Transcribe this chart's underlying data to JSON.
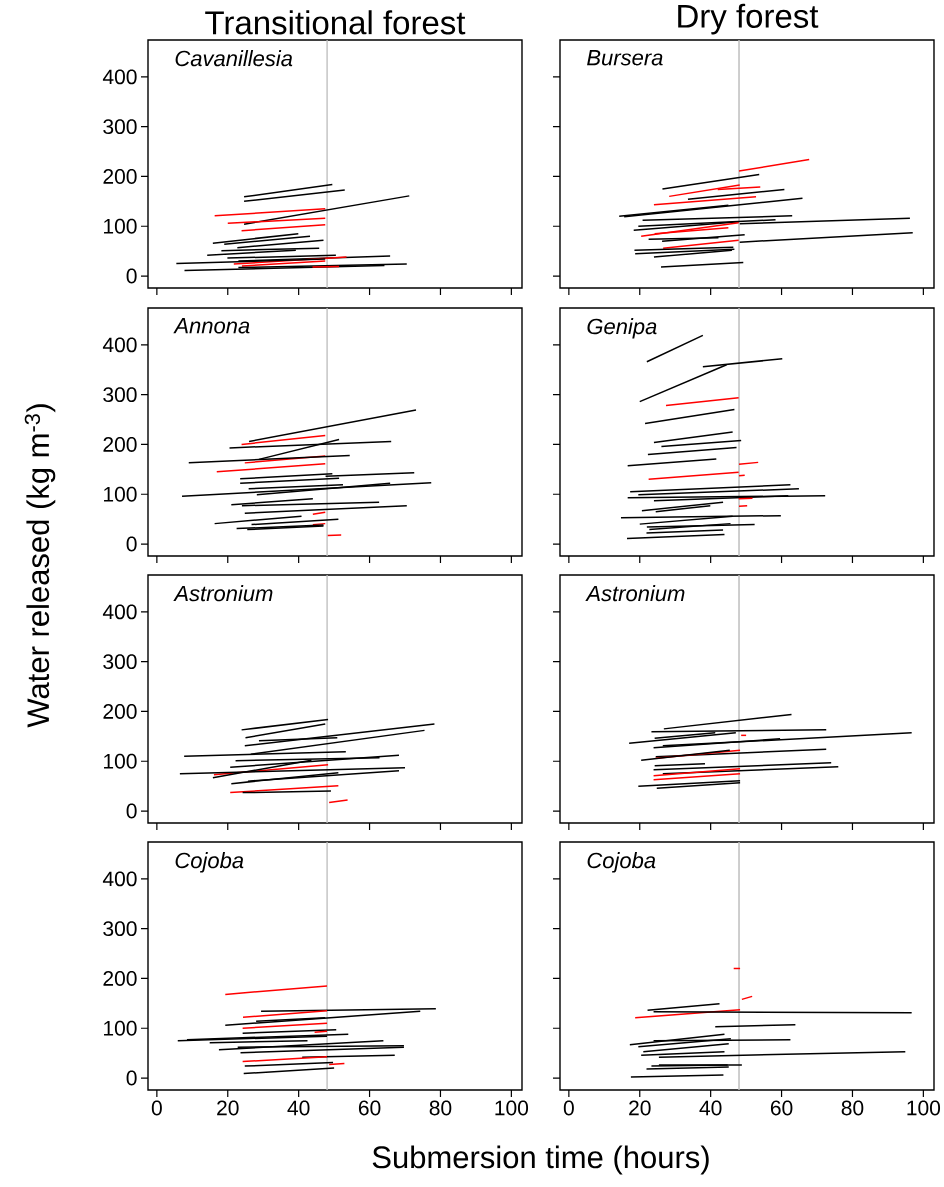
{
  "chart_data": [
    {
      "type": "line",
      "title": "Transitional forest",
      "annotations": [
        "Cavanillesia"
      ],
      "xlim": [
        -2.5,
        103
      ],
      "ylim": [
        -24,
        474
      ],
      "xticks": [
        0,
        20,
        40,
        60,
        80,
        100
      ],
      "yticks": [
        0,
        100,
        200,
        300,
        400
      ],
      "tick_labels": "y",
      "ref_lines": [
        {
          "axis": "x",
          "value": 48,
          "color": "#bebebe"
        }
      ],
      "series": [
        {
          "color": "#000000",
          "x": [
            24.6,
            49.5
          ],
          "values": [
            159,
            184
          ]
        },
        {
          "color": "#000000",
          "x": [
            24.6,
            53
          ],
          "values": [
            150,
            173
          ]
        },
        {
          "color": "#ff0000",
          "x": [
            16.3,
            47.5
          ],
          "values": [
            121,
            135
          ]
        },
        {
          "color": "#000000",
          "x": [
            24.6,
            71.2
          ],
          "values": [
            104,
            161
          ]
        },
        {
          "color": "#ff0000",
          "x": [
            20,
            47.5
          ],
          "values": [
            106,
            116
          ]
        },
        {
          "color": "#ff0000",
          "x": [
            23.9,
            47.5
          ],
          "values": [
            91,
            103
          ]
        },
        {
          "color": "#000000",
          "x": [
            15.8,
            39.9
          ],
          "values": [
            66,
            85
          ]
        },
        {
          "color": "#000000",
          "x": [
            19,
            43.2
          ],
          "values": [
            64,
            80
          ]
        },
        {
          "color": "#000000",
          "x": [
            22.7,
            47
          ],
          "values": [
            57,
            72
          ]
        },
        {
          "color": "#000000",
          "x": [
            18.2,
            45.8
          ],
          "values": [
            51,
            56
          ]
        },
        {
          "color": "#000000",
          "x": [
            14.2,
            39.2
          ],
          "values": [
            42,
            52
          ]
        },
        {
          "color": "#000000",
          "x": [
            19.9,
            50.5
          ],
          "values": [
            36,
            42
          ]
        },
        {
          "color": "#000000",
          "x": [
            23,
            65.8
          ],
          "values": [
            30,
            40
          ]
        },
        {
          "color": "#ff0000",
          "x": [
            21.7,
            53.5
          ],
          "values": [
            24,
            38
          ]
        },
        {
          "color": "#000000",
          "x": [
            5.5,
            47.5
          ],
          "values": [
            25,
            34
          ]
        },
        {
          "color": "#ff0000",
          "x": [
            24,
            47.5
          ],
          "values": [
            20,
            30
          ]
        },
        {
          "color": "#000000",
          "x": [
            7.8,
            64.2
          ],
          "values": [
            11,
            21
          ]
        },
        {
          "color": "#000000",
          "x": [
            23,
            70.5
          ],
          "values": [
            17,
            24
          ]
        },
        {
          "color": "#ff0000",
          "x": [
            43.9,
            51.4
          ],
          "values": [
            18,
            19
          ]
        }
      ]
    },
    {
      "type": "line",
      "title": "Dry forest",
      "annotations": [
        "Bursera"
      ],
      "xlim": [
        -2.5,
        103
      ],
      "ylim": [
        -24,
        474
      ],
      "xticks": [
        0,
        20,
        40,
        60,
        80,
        100
      ],
      "yticks": [
        0,
        100,
        200,
        300,
        400
      ],
      "tick_labels": false,
      "ref_lines": [
        {
          "axis": "x",
          "value": 48,
          "color": "#bebebe"
        }
      ],
      "series": [
        {
          "color": "#ff0000",
          "x": [
            48,
            67.8
          ],
          "values": [
            211,
            234
          ]
        },
        {
          "color": "#000000",
          "x": [
            26.4,
            53.7
          ],
          "values": [
            175,
            204
          ]
        },
        {
          "color": "#ff0000",
          "x": [
            28.3,
            48.2
          ],
          "values": [
            160,
            183
          ]
        },
        {
          "color": "#ff0000",
          "x": [
            42,
            54
          ],
          "values": [
            174,
            179
          ]
        },
        {
          "color": "#000000",
          "x": [
            33.6,
            60.8
          ],
          "values": [
            154,
            174
          ]
        },
        {
          "color": "#ff0000",
          "x": [
            24,
            52.8
          ],
          "values": [
            143,
            159
          ]
        },
        {
          "color": "#000000",
          "x": [
            15.6,
            65.9
          ],
          "values": [
            119,
            156
          ]
        },
        {
          "color": "#000000",
          "x": [
            14.2,
            45
          ],
          "values": [
            120,
            142
          ]
        },
        {
          "color": "#000000",
          "x": [
            20.8,
            63
          ],
          "values": [
            112,
            121
          ]
        },
        {
          "color": "#000000",
          "x": [
            19.6,
            58.3
          ],
          "values": [
            100,
            113
          ]
        },
        {
          "color": "#000000",
          "x": [
            18.3,
            47.9
          ],
          "values": [
            92,
            109
          ]
        },
        {
          "color": "#ff0000",
          "x": [
            20.4,
            47.9
          ],
          "values": [
            80,
            107
          ]
        },
        {
          "color": "#000000",
          "x": [
            48.2,
            96.2
          ],
          "values": [
            105,
            116
          ]
        },
        {
          "color": "#ff0000",
          "x": [
            24.2,
            45
          ],
          "values": [
            85,
            97
          ]
        },
        {
          "color": "#000000",
          "x": [
            22.5,
            42.2
          ],
          "values": [
            74,
            77
          ]
        },
        {
          "color": "#000000",
          "x": [
            26.3,
            49.6
          ],
          "values": [
            70,
            83
          ]
        },
        {
          "color": "#000000",
          "x": [
            48.2,
            97
          ],
          "values": [
            68,
            87
          ]
        },
        {
          "color": "#ff0000",
          "x": [
            26.6,
            47.9
          ],
          "values": [
            56,
            72
          ]
        },
        {
          "color": "#000000",
          "x": [
            18.5,
            46.4
          ],
          "values": [
            52,
            58
          ]
        },
        {
          "color": "#000000",
          "x": [
            18.7,
            46.7
          ],
          "values": [
            45,
            54
          ]
        },
        {
          "color": "#000000",
          "x": [
            24,
            46
          ],
          "values": [
            38,
            52
          ]
        },
        {
          "color": "#000000",
          "x": [
            26,
            49.2
          ],
          "values": [
            18,
            27
          ]
        }
      ]
    },
    {
      "type": "line",
      "ylabel": "Water released (kg m$^{-3}$)",
      "annotations": [
        "Annona"
      ],
      "xlim": [
        -2.5,
        103
      ],
      "ylim": [
        -24,
        474
      ],
      "xticks": [
        0,
        20,
        40,
        60,
        80,
        100
      ],
      "yticks": [
        0,
        100,
        200,
        300,
        400
      ],
      "tick_labels": "y",
      "ref_lines": [
        {
          "axis": "x",
          "value": 48,
          "color": "#bebebe"
        }
      ],
      "series": [
        {
          "color": "#000000",
          "x": [
            26,
            73.1
          ],
          "values": [
            206,
            269
          ]
        },
        {
          "color": "#ff0000",
          "x": [
            23.9,
            47.5
          ],
          "values": [
            200,
            218
          ]
        },
        {
          "color": "#000000",
          "x": [
            20.5,
            66.1
          ],
          "values": [
            193,
            206
          ]
        },
        {
          "color": "#000000",
          "x": [
            28.8,
            51.4
          ],
          "values": [
            170,
            210
          ]
        },
        {
          "color": "#ff0000",
          "x": [
            24.8,
            47.5
          ],
          "values": [
            163,
            177
          ]
        },
        {
          "color": "#000000",
          "x": [
            9,
            54.4
          ],
          "values": [
            163,
            178
          ]
        },
        {
          "color": "#ff0000",
          "x": [
            16.9,
            47.5
          ],
          "values": [
            145,
            161
          ]
        },
        {
          "color": "#000000",
          "x": [
            23.5,
            49.5
          ],
          "values": [
            131,
            141
          ]
        },
        {
          "color": "#000000",
          "x": [
            23.5,
            51.4
          ],
          "values": [
            122,
            132
          ]
        },
        {
          "color": "#000000",
          "x": [
            47.6,
            72.6
          ],
          "values": [
            136,
            143
          ]
        },
        {
          "color": "#000000",
          "x": [
            25.9,
            52.5
          ],
          "values": [
            111,
            119
          ]
        },
        {
          "color": "#000000",
          "x": [
            7.1,
            77.4
          ],
          "values": [
            96,
            123
          ]
        },
        {
          "color": "#000000",
          "x": [
            28.2,
            65.8
          ],
          "values": [
            99,
            122
          ]
        },
        {
          "color": "#000000",
          "x": [
            21,
            44
          ],
          "values": [
            79,
            91
          ]
        },
        {
          "color": "#000000",
          "x": [
            24,
            62.7
          ],
          "values": [
            77,
            84
          ]
        },
        {
          "color": "#000000",
          "x": [
            24.8,
            70.5
          ],
          "values": [
            62,
            77
          ]
        },
        {
          "color": "#ff0000",
          "x": [
            44,
            47.5
          ],
          "values": [
            60,
            64
          ]
        },
        {
          "color": "#000000",
          "x": [
            16.3,
            40.8
          ],
          "values": [
            41,
            56
          ]
        },
        {
          "color": "#000000",
          "x": [
            26.7,
            51.2
          ],
          "values": [
            39,
            50
          ]
        },
        {
          "color": "#ff0000",
          "x": [
            44,
            47.5
          ],
          "values": [
            39,
            41
          ]
        },
        {
          "color": "#000000",
          "x": [
            22.5,
            47
          ],
          "values": [
            31,
            38
          ]
        },
        {
          "color": "#000000",
          "x": [
            25.5,
            47
          ],
          "values": [
            29,
            36
          ]
        },
        {
          "color": "#ff0000",
          "x": [
            48.2,
            52
          ],
          "values": [
            17,
            18
          ]
        }
      ]
    },
    {
      "type": "line",
      "annotations": [
        "Genipa"
      ],
      "xlim": [
        -2.5,
        103
      ],
      "ylim": [
        -24,
        474
      ],
      "xticks": [
        0,
        20,
        40,
        60,
        80,
        100
      ],
      "yticks": [
        0,
        100,
        200,
        300,
        400
      ],
      "tick_labels": false,
      "ref_lines": [
        {
          "axis": "x",
          "value": 48,
          "color": "#bebebe"
        }
      ],
      "series": [
        {
          "color": "#000000",
          "x": [
            22,
            37.8
          ],
          "values": [
            366,
            419
          ]
        },
        {
          "color": "#000000",
          "x": [
            20,
            44.5
          ],
          "values": [
            286,
            360
          ]
        },
        {
          "color": "#000000",
          "x": [
            37.8,
            60.2
          ],
          "values": [
            356,
            372
          ]
        },
        {
          "color": "#ff0000",
          "x": [
            27.4,
            47.9
          ],
          "values": [
            278,
            294
          ]
        },
        {
          "color": "#000000",
          "x": [
            21.5,
            46.7
          ],
          "values": [
            242,
            270
          ]
        },
        {
          "color": "#000000",
          "x": [
            24,
            46.2
          ],
          "values": [
            204,
            225
          ]
        },
        {
          "color": "#000000",
          "x": [
            26.1,
            48.6
          ],
          "values": [
            196,
            208
          ]
        },
        {
          "color": "#000000",
          "x": [
            22.3,
            47.3
          ],
          "values": [
            180,
            194
          ]
        },
        {
          "color": "#000000",
          "x": [
            16.6,
            41.6
          ],
          "values": [
            157,
            171
          ]
        },
        {
          "color": "#ff0000",
          "x": [
            48,
            53.4
          ],
          "values": [
            160,
            164
          ]
        },
        {
          "color": "#ff0000",
          "x": [
            22.5,
            47.9
          ],
          "values": [
            130,
            144
          ]
        },
        {
          "color": "#ff0000",
          "x": [
            48,
            49.6
          ],
          "values": [
            137,
            138
          ]
        },
        {
          "color": "#000000",
          "x": [
            17.3,
            62.5
          ],
          "values": [
            105,
            119
          ]
        },
        {
          "color": "#000000",
          "x": [
            19.6,
            64.9
          ],
          "values": [
            99,
            111
          ]
        },
        {
          "color": "#000000",
          "x": [
            16.6,
            72.3
          ],
          "values": [
            93,
            97
          ]
        },
        {
          "color": "#000000",
          "x": [
            24,
            61.9
          ],
          "values": [
            87,
            97
          ]
        },
        {
          "color": "#ff0000",
          "x": [
            47.9,
            51.8
          ],
          "values": [
            91,
            92
          ]
        },
        {
          "color": "#000000",
          "x": [
            20.6,
            43.5
          ],
          "values": [
            67,
            84
          ]
        },
        {
          "color": "#000000",
          "x": [
            24.5,
            39.9
          ],
          "values": [
            65,
            77
          ]
        },
        {
          "color": "#ff0000",
          "x": [
            48,
            50.3
          ],
          "values": [
            76,
            77
          ]
        },
        {
          "color": "#000000",
          "x": [
            14.7,
            59.8
          ],
          "values": [
            53,
            57
          ]
        },
        {
          "color": "#000000",
          "x": [
            20,
            46.2
          ],
          "values": [
            40,
            56
          ]
        },
        {
          "color": "#000000",
          "x": [
            22,
            52.4
          ],
          "values": [
            34,
            39
          ]
        },
        {
          "color": "#000000",
          "x": [
            22.7,
            45.6
          ],
          "values": [
            29,
            41
          ]
        },
        {
          "color": "#000000",
          "x": [
            21.9,
            43.5
          ],
          "values": [
            22,
            28
          ]
        },
        {
          "color": "#000000",
          "x": [
            16.4,
            43.9
          ],
          "values": [
            11,
            19
          ]
        }
      ]
    },
    {
      "type": "line",
      "annotations": [
        "Astronium"
      ],
      "xlim": [
        -2.5,
        103
      ],
      "ylim": [
        -24,
        474
      ],
      "xticks": [
        0,
        20,
        40,
        60,
        80,
        100
      ],
      "yticks": [
        0,
        100,
        200,
        300,
        400
      ],
      "tick_labels": "y",
      "ref_lines": [
        {
          "axis": "x",
          "value": 48,
          "color": "#bebebe"
        }
      ],
      "series": [
        {
          "color": "#000000",
          "x": [
            23.9,
            48.3
          ],
          "values": [
            163,
            184
          ]
        },
        {
          "color": "#000000",
          "x": [
            25,
            47.5
          ],
          "values": [
            147,
            175
          ]
        },
        {
          "color": "#000000",
          "x": [
            28.8,
            50.9
          ],
          "values": [
            141,
            147
          ]
        },
        {
          "color": "#000000",
          "x": [
            24.8,
            78.3
          ],
          "values": [
            131,
            175
          ]
        },
        {
          "color": "#000000",
          "x": [
            26.5,
            75.5
          ],
          "values": [
            114,
            162
          ]
        },
        {
          "color": "#000000",
          "x": [
            7.7,
            53.3
          ],
          "values": [
            110,
            119
          ]
        },
        {
          "color": "#000000",
          "x": [
            22.2,
            62.8
          ],
          "values": [
            101,
            107
          ]
        },
        {
          "color": "#000000",
          "x": [
            20.7,
            68.3
          ],
          "values": [
            88,
            112
          ]
        },
        {
          "color": "#ff0000",
          "x": [
            16.1,
            48.3
          ],
          "values": [
            73,
            93
          ]
        },
        {
          "color": "#000000",
          "x": [
            6.5,
            70
          ],
          "values": [
            75,
            87
          ]
        },
        {
          "color": "#000000",
          "x": [
            15.8,
            43.6
          ],
          "values": [
            67,
            102
          ]
        },
        {
          "color": "#000000",
          "x": [
            21,
            51.2
          ],
          "values": [
            55,
            77
          ]
        },
        {
          "color": "#000000",
          "x": [
            25.7,
            68.3
          ],
          "values": [
            60,
            81
          ]
        },
        {
          "color": "#ff0000",
          "x": [
            20.7,
            51.2
          ],
          "values": [
            37,
            51
          ]
        },
        {
          "color": "#000000",
          "x": [
            24.2,
            49.1
          ],
          "values": [
            37,
            40
          ]
        },
        {
          "color": "#ff0000",
          "x": [
            48.6,
            53.8
          ],
          "values": [
            17,
            22
          ]
        }
      ]
    },
    {
      "type": "line",
      "annotations": [
        "Astronium"
      ],
      "xlim": [
        -2.5,
        103
      ],
      "ylim": [
        -24,
        474
      ],
      "xticks": [
        0,
        20,
        40,
        60,
        80,
        100
      ],
      "yticks": [
        0,
        100,
        200,
        300,
        400
      ],
      "tick_labels": false,
      "ref_lines": [
        {
          "axis": "x",
          "value": 48,
          "color": "#bebebe"
        }
      ],
      "series": [
        {
          "color": "#000000",
          "x": [
            26.8,
            62.8
          ],
          "values": [
            165,
            194
          ]
        },
        {
          "color": "#000000",
          "x": [
            23.3,
            72.6
          ],
          "values": [
            159,
            163
          ]
        },
        {
          "color": "#000000",
          "x": [
            17,
            47.1
          ],
          "values": [
            136,
            157
          ]
        },
        {
          "color": "#000000",
          "x": [
            24.2,
            41.3
          ],
          "values": [
            146,
            157
          ]
        },
        {
          "color": "#000000",
          "x": [
            26.5,
            96.7
          ],
          "values": [
            131,
            157
          ]
        },
        {
          "color": "#000000",
          "x": [
            23.9,
            59.6
          ],
          "values": [
            127,
            145
          ]
        },
        {
          "color": "#ff0000",
          "x": [
            48.6,
            50
          ],
          "values": [
            152,
            152
          ]
        },
        {
          "color": "#000000",
          "x": [
            24.5,
            72.6
          ],
          "values": [
            109,
            124
          ]
        },
        {
          "color": "#ff0000",
          "x": [
            24.5,
            48.3
          ],
          "values": [
            106,
            122
          ]
        },
        {
          "color": "#000000",
          "x": [
            20.4,
            45.4
          ],
          "values": [
            102,
            122
          ]
        },
        {
          "color": "#000000",
          "x": [
            24.2,
            38.4
          ],
          "values": [
            91,
            95
          ]
        },
        {
          "color": "#000000",
          "x": [
            23.9,
            74
          ],
          "values": [
            83,
            97
          ]
        },
        {
          "color": "#000000",
          "x": [
            26.5,
            76
          ],
          "values": [
            75,
            89
          ]
        },
        {
          "color": "#ff0000",
          "x": [
            23.9,
            48.3
          ],
          "values": [
            71,
            85
          ]
        },
        {
          "color": "#ff0000",
          "x": [
            23.9,
            48.3
          ],
          "values": [
            63,
            75
          ]
        },
        {
          "color": "#000000",
          "x": [
            19.6,
            48.3
          ],
          "values": [
            50,
            61
          ]
        },
        {
          "color": "#000000",
          "x": [
            24.8,
            48.3
          ],
          "values": [
            46,
            57
          ]
        }
      ]
    },
    {
      "type": "line",
      "xlabel": "Submersion time (hours)",
      "annotations": [
        "Cojoba"
      ],
      "xlim": [
        -2.5,
        103
      ],
      "ylim": [
        -24,
        474
      ],
      "xticks": [
        0,
        20,
        40,
        60,
        80,
        100
      ],
      "yticks": [
        0,
        100,
        200,
        300,
        400
      ],
      "ref_lines": [
        {
          "axis": "x",
          "value": 48,
          "color": "#bebebe"
        }
      ],
      "series": [
        {
          "color": "#ff0000",
          "x": [
            19.3,
            48
          ],
          "values": [
            168,
            185
          ]
        },
        {
          "color": "#000000",
          "x": [
            29.4,
            78.7
          ],
          "values": [
            134,
            139
          ]
        },
        {
          "color": "#ff0000",
          "x": [
            24.3,
            48
          ],
          "values": [
            122,
            135
          ]
        },
        {
          "color": "#000000",
          "x": [
            19.3,
            74.3
          ],
          "values": [
            106,
            134
          ]
        },
        {
          "color": "#000000",
          "x": [
            28,
            47.5
          ],
          "values": [
            114,
            121
          ]
        },
        {
          "color": "#ff0000",
          "x": [
            24.2,
            48
          ],
          "values": [
            100,
            110
          ]
        },
        {
          "color": "#000000",
          "x": [
            24.2,
            50.6
          ],
          "values": [
            90,
            97
          ]
        },
        {
          "color": "#ff0000",
          "x": [
            44.5,
            48
          ],
          "values": [
            92,
            94
          ]
        },
        {
          "color": "#000000",
          "x": [
            5.9,
            48
          ],
          "values": [
            75,
            84
          ]
        },
        {
          "color": "#000000",
          "x": [
            8.5,
            54
          ],
          "values": [
            77,
            88
          ]
        },
        {
          "color": "#000000",
          "x": [
            14.9,
            42.5
          ],
          "values": [
            71,
            75
          ]
        },
        {
          "color": "#000000",
          "x": [
            17.5,
            63.9
          ],
          "values": [
            57,
            75
          ]
        },
        {
          "color": "#000000",
          "x": [
            22.8,
            69.7
          ],
          "values": [
            62,
            65
          ]
        },
        {
          "color": "#000000",
          "x": [
            23.6,
            69.7
          ],
          "values": [
            51,
            62
          ]
        },
        {
          "color": "#000000",
          "x": [
            41,
            67.1
          ],
          "values": [
            42,
            46
          ]
        },
        {
          "color": "#ff0000",
          "x": [
            24.2,
            48
          ],
          "values": [
            33,
            43
          ]
        },
        {
          "color": "#ff0000",
          "x": [
            48.6,
            52.9
          ],
          "values": [
            27,
            29
          ]
        },
        {
          "color": "#000000",
          "x": [
            24.8,
            49.7
          ],
          "values": [
            24,
            31
          ]
        },
        {
          "color": "#000000",
          "x": [
            24.5,
            50
          ],
          "values": [
            9,
            20
          ]
        }
      ]
    },
    {
      "type": "line",
      "annotations": [
        "Cojoba"
      ],
      "xlim": [
        -2.5,
        103
      ],
      "ylim": [
        -24,
        474
      ],
      "xticks": [
        0,
        20,
        40,
        60,
        80,
        100
      ],
      "yticks": [
        0,
        100,
        200,
        300,
        400
      ],
      "tick_labels": "x",
      "ref_lines": [
        {
          "axis": "x",
          "value": 48,
          "color": "#bebebe"
        }
      ],
      "series": [
        {
          "color": "#ff0000",
          "x": [
            46.5,
            48.3
          ],
          "values": [
            220,
            220
          ]
        },
        {
          "color": "#ff0000",
          "x": [
            48.8,
            51.7
          ],
          "values": [
            158,
            164
          ]
        },
        {
          "color": "#000000",
          "x": [
            22.2,
            42.5
          ],
          "values": [
            136,
            149
          ]
        },
        {
          "color": "#ff0000",
          "x": [
            18.7,
            48.3
          ],
          "values": [
            121,
            137
          ]
        },
        {
          "color": "#000000",
          "x": [
            23.9,
            96.7
          ],
          "values": [
            133,
            131
          ]
        },
        {
          "color": "#000000",
          "x": [
            41.3,
            63.9
          ],
          "values": [
            103,
            107
          ]
        },
        {
          "color": "#000000",
          "x": [
            17.2,
            43.9
          ],
          "values": [
            67,
            88
          ]
        },
        {
          "color": "#000000",
          "x": [
            23.9,
            62.5
          ],
          "values": [
            75,
            77
          ]
        },
        {
          "color": "#000000",
          "x": [
            19.6,
            45.7
          ],
          "values": [
            63,
            79
          ]
        },
        {
          "color": "#000000",
          "x": [
            21,
            45.1
          ],
          "values": [
            53,
            69
          ]
        },
        {
          "color": "#000000",
          "x": [
            25.4,
            94.9
          ],
          "values": [
            42,
            53
          ]
        },
        {
          "color": "#000000",
          "x": [
            20.4,
            43.9
          ],
          "values": [
            46,
            53
          ]
        },
        {
          "color": "#000000",
          "x": [
            25.4,
            48.8
          ],
          "values": [
            26,
            26
          ]
        },
        {
          "color": "#000000",
          "x": [
            23.3,
            44.8
          ],
          "values": [
            24,
            26
          ]
        },
        {
          "color": "#000000",
          "x": [
            21.9,
            45.1
          ],
          "values": [
            18,
            22
          ]
        },
        {
          "color": "#000000",
          "x": [
            17.5,
            43.6
          ],
          "values": [
            2,
            6
          ]
        }
      ]
    }
  ]
}
